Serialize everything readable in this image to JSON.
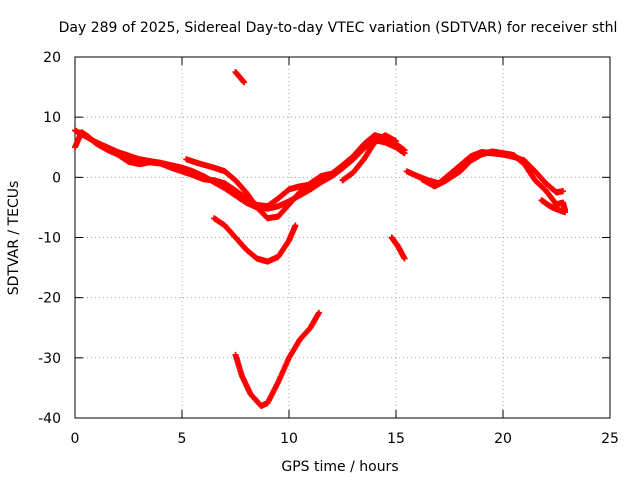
{
  "chart_data": {
    "type": "scatter",
    "title": "Day 289 of 2025, Sidereal Day-to-day VTEC variation (SDTVAR) for receiver sthl",
    "xlabel": "GPS time / hours",
    "ylabel": "SDTVAR / TECUs",
    "xlim": [
      0,
      25
    ],
    "ylim": [
      -40,
      20
    ],
    "x_ticks": [
      0,
      5,
      10,
      15,
      20,
      25
    ],
    "y_ticks": [
      -40,
      -30,
      -20,
      -10,
      0,
      10,
      20
    ],
    "grid": true,
    "point_color": "#ff0000",
    "series": [
      {
        "name": "track-1",
        "points": [
          [
            0,
            7.8
          ],
          [
            0.5,
            6.8
          ],
          [
            1,
            5.8
          ],
          [
            1.5,
            5.0
          ],
          [
            2,
            4.2
          ],
          [
            2.5,
            3.6
          ],
          [
            3,
            3.0
          ],
          [
            3.5,
            2.7
          ],
          [
            4,
            2.4
          ],
          [
            4.5,
            2.0
          ],
          [
            5,
            1.6
          ],
          [
            5.5,
            1.0
          ],
          [
            6,
            0.2
          ],
          [
            6.5,
            -0.8
          ],
          [
            7,
            -1.8
          ],
          [
            7.5,
            -3.0
          ],
          [
            8,
            -4.2
          ],
          [
            8.5,
            -5.0
          ],
          [
            9,
            -5.2
          ],
          [
            9.5,
            -4.8
          ],
          [
            10,
            -4.0
          ],
          [
            10.5,
            -3.0
          ],
          [
            11,
            -2.0
          ],
          [
            11.5,
            -0.8
          ],
          [
            12,
            0.2
          ],
          [
            12.5,
            1.5
          ],
          [
            13,
            3.0
          ],
          [
            13.5,
            4.8
          ],
          [
            14,
            6.2
          ],
          [
            14.5,
            5.8
          ],
          [
            15,
            5.0
          ],
          [
            15.4,
            4.0
          ]
        ]
      },
      {
        "name": "track-2",
        "points": [
          [
            0,
            5.0
          ],
          [
            0.3,
            7.5
          ],
          [
            0.6,
            6.8
          ],
          [
            1,
            5.6
          ],
          [
            1.5,
            4.6
          ],
          [
            2,
            3.8
          ],
          [
            2.5,
            2.6
          ],
          [
            3,
            2.2
          ],
          [
            3.5,
            2.5
          ],
          [
            4,
            2.3
          ],
          [
            4.5,
            1.6
          ],
          [
            5,
            1.0
          ],
          [
            5.5,
            0.4
          ],
          [
            6,
            -0.3
          ],
          [
            6.5,
            -0.5
          ],
          [
            7,
            -1.0
          ],
          [
            7.5,
            -2.2
          ],
          [
            8,
            -3.5
          ],
          [
            8.5,
            -4.6
          ],
          [
            9,
            -4.8
          ],
          [
            9.5,
            -3.5
          ],
          [
            10,
            -2.0
          ],
          [
            10.5,
            -1.5
          ],
          [
            11,
            -1.2
          ],
          [
            11.5,
            -0.2
          ],
          [
            12,
            0.6
          ],
          [
            12.5,
            2.0
          ],
          [
            13,
            3.5
          ],
          [
            13.5,
            5.5
          ],
          [
            14,
            7.0
          ],
          [
            14.5,
            6.5
          ],
          [
            15,
            5.5
          ],
          [
            15.4,
            4.5
          ]
        ]
      },
      {
        "name": "track-3",
        "points": [
          [
            5.2,
            3.0
          ],
          [
            5.8,
            2.3
          ],
          [
            6.5,
            1.6
          ],
          [
            7,
            1.0
          ],
          [
            7.5,
            -0.5
          ],
          [
            8,
            -2.5
          ],
          [
            8.5,
            -5.0
          ],
          [
            9,
            -6.8
          ],
          [
            9.5,
            -6.5
          ],
          [
            10,
            -4.5
          ],
          [
            10.5,
            -2.5
          ],
          [
            11,
            -1.0
          ],
          [
            11.5,
            0.2
          ],
          [
            12,
            0.6
          ]
        ]
      },
      {
        "name": "track-4",
        "points": [
          [
            12.5,
            -0.5
          ],
          [
            13,
            0.8
          ],
          [
            13.5,
            3.0
          ],
          [
            14,
            5.8
          ],
          [
            14.5,
            7.0
          ],
          [
            15,
            6.0
          ]
        ]
      },
      {
        "name": "track-5",
        "points": [
          [
            15.5,
            1.0
          ],
          [
            16,
            0.2
          ],
          [
            16.5,
            -0.5
          ],
          [
            17,
            -1.0
          ],
          [
            17.5,
            0.5
          ],
          [
            18,
            2.0
          ],
          [
            18.5,
            3.5
          ],
          [
            19,
            4.2
          ],
          [
            19.5,
            4.0
          ],
          [
            20,
            3.8
          ],
          [
            20.5,
            3.4
          ],
          [
            21,
            2.8
          ],
          [
            21.5,
            1.0
          ],
          [
            22,
            -1.0
          ],
          [
            22.5,
            -2.5
          ],
          [
            22.8,
            -2.3
          ]
        ]
      },
      {
        "name": "track-6",
        "points": [
          [
            16.2,
            -0.3
          ],
          [
            16.8,
            -1.5
          ],
          [
            17.3,
            -0.6
          ],
          [
            18,
            1.0
          ],
          [
            18.5,
            2.8
          ],
          [
            19,
            3.8
          ],
          [
            19.5,
            4.3
          ],
          [
            20,
            4.0
          ],
          [
            20.5,
            3.7
          ],
          [
            21,
            2.2
          ],
          [
            21.5,
            -0.5
          ],
          [
            22,
            -2.2
          ],
          [
            22.5,
            -4.5
          ],
          [
            22.8,
            -4.2
          ],
          [
            22.9,
            -5.5
          ]
        ]
      },
      {
        "name": "track-7",
        "points": [
          [
            21.8,
            -3.8
          ],
          [
            22.2,
            -4.8
          ],
          [
            22.5,
            -5.3
          ],
          [
            22.9,
            -5.8
          ]
        ]
      },
      {
        "name": "track-8",
        "points": [
          [
            6.5,
            -6.8
          ],
          [
            7,
            -8.0
          ],
          [
            7.5,
            -10.0
          ],
          [
            8,
            -12.0
          ],
          [
            8.5,
            -13.5
          ],
          [
            9,
            -14.0
          ],
          [
            9.5,
            -13.2
          ],
          [
            10,
            -10.5
          ],
          [
            10.3,
            -8.0
          ]
        ]
      },
      {
        "name": "track-9",
        "points": [
          [
            7.5,
            -29.5
          ],
          [
            7.8,
            -33.0
          ],
          [
            8.2,
            -36.0
          ],
          [
            8.7,
            -38.0
          ],
          [
            9,
            -37.5
          ],
          [
            9.5,
            -34.0
          ],
          [
            10,
            -30.0
          ],
          [
            10.5,
            -27.0
          ],
          [
            11,
            -25.0
          ],
          [
            11.4,
            -22.5
          ]
        ]
      },
      {
        "name": "track-10",
        "points": [
          [
            7.5,
            17.5
          ],
          [
            7.9,
            15.8
          ]
        ]
      },
      {
        "name": "track-11",
        "points": [
          [
            14.8,
            -10.0
          ],
          [
            15.1,
            -11.5
          ],
          [
            15.4,
            -13.5
          ]
        ]
      }
    ]
  }
}
